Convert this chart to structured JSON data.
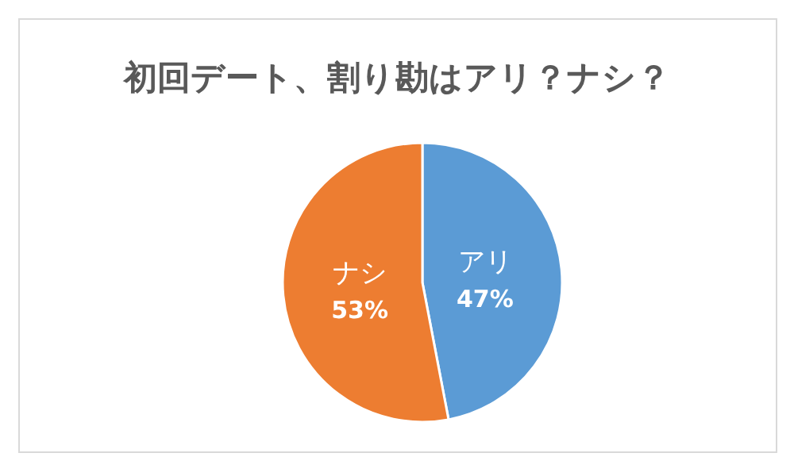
{
  "chart_data": {
    "type": "pie",
    "title": "初回デート、割り勘はアリ？ナシ？",
    "categories": [
      "アリ",
      "ナシ"
    ],
    "values": [
      47,
      53
    ],
    "colors": [
      "#5b9bd5",
      "#ed7d31"
    ],
    "value_labels": [
      "47%",
      "53%"
    ]
  }
}
